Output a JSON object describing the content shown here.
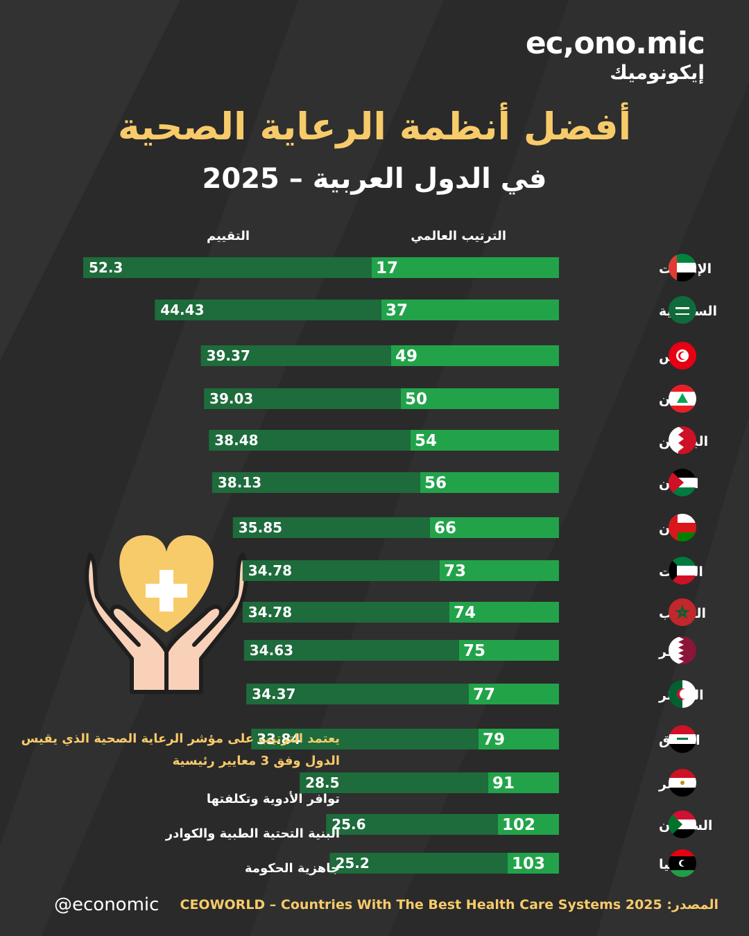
{
  "brand": {
    "name_en": "ec,ono.mic",
    "name_ar": "إيكونوميك"
  },
  "header": {
    "title": "أفضل أنظمة الرعاية الصحية",
    "subtitle": "في الدول العربية – 2025"
  },
  "colors": {
    "background": "#2a2a2a",
    "accent": "#f8cb6a",
    "rank_bar": "#22a34a",
    "score_bar": "#1e6b3c"
  },
  "chart_data": {
    "type": "bar",
    "column_headers": {
      "rank": "الترتيب العالمي",
      "score": "التقييم"
    },
    "categories": [
      "الإمارات",
      "السعودية",
      "تونس",
      "لبنان",
      "البحرين",
      "الأردن",
      "عُمان",
      "الكويت",
      "المغرب",
      "قطر",
      "الجزائر",
      "العراق",
      "مصر",
      "السودان",
      "ليبيا"
    ],
    "flags": [
      "uae-flag",
      "saudi-flag",
      "tunisia-flag",
      "lebanon-flag",
      "bahrain-flag",
      "jordan-flag",
      "oman-flag",
      "kuwait-flag",
      "morocco-flag",
      "qatar-flag",
      "algeria-flag",
      "iraq-flag",
      "egypt-flag",
      "sudan-flag",
      "libya-flag"
    ],
    "series": [
      {
        "name": "الترتيب العالمي",
        "values": [
          17,
          37,
          49,
          50,
          54,
          56,
          66,
          73,
          74,
          75,
          77,
          79,
          91,
          102,
          103
        ]
      },
      {
        "name": "التقييم",
        "values": [
          "52.3",
          "44.43",
          "39.37",
          "39.03",
          "38.48",
          "38.13",
          "35.85",
          "34.78",
          "34.78",
          "34.63",
          "34.37",
          "33.84",
          "28.5",
          "25.6",
          "25.2"
        ]
      }
    ]
  },
  "notes": {
    "main": "يعتمد الترتيب على مؤشر الرعاية الصحية الذي يقيس الدول وفق 3 معايير رئيسية",
    "criteria": [
      "توافر الأدوية وتكلفتها",
      "البنية التحتية الطبية والكوادر",
      "جاهزية الحكومة"
    ]
  },
  "footer": {
    "handle": "@economic",
    "source_label": "المصدر:",
    "source_text": "CEOWORLD – Countries With The Best Health Care Systems 2025"
  }
}
